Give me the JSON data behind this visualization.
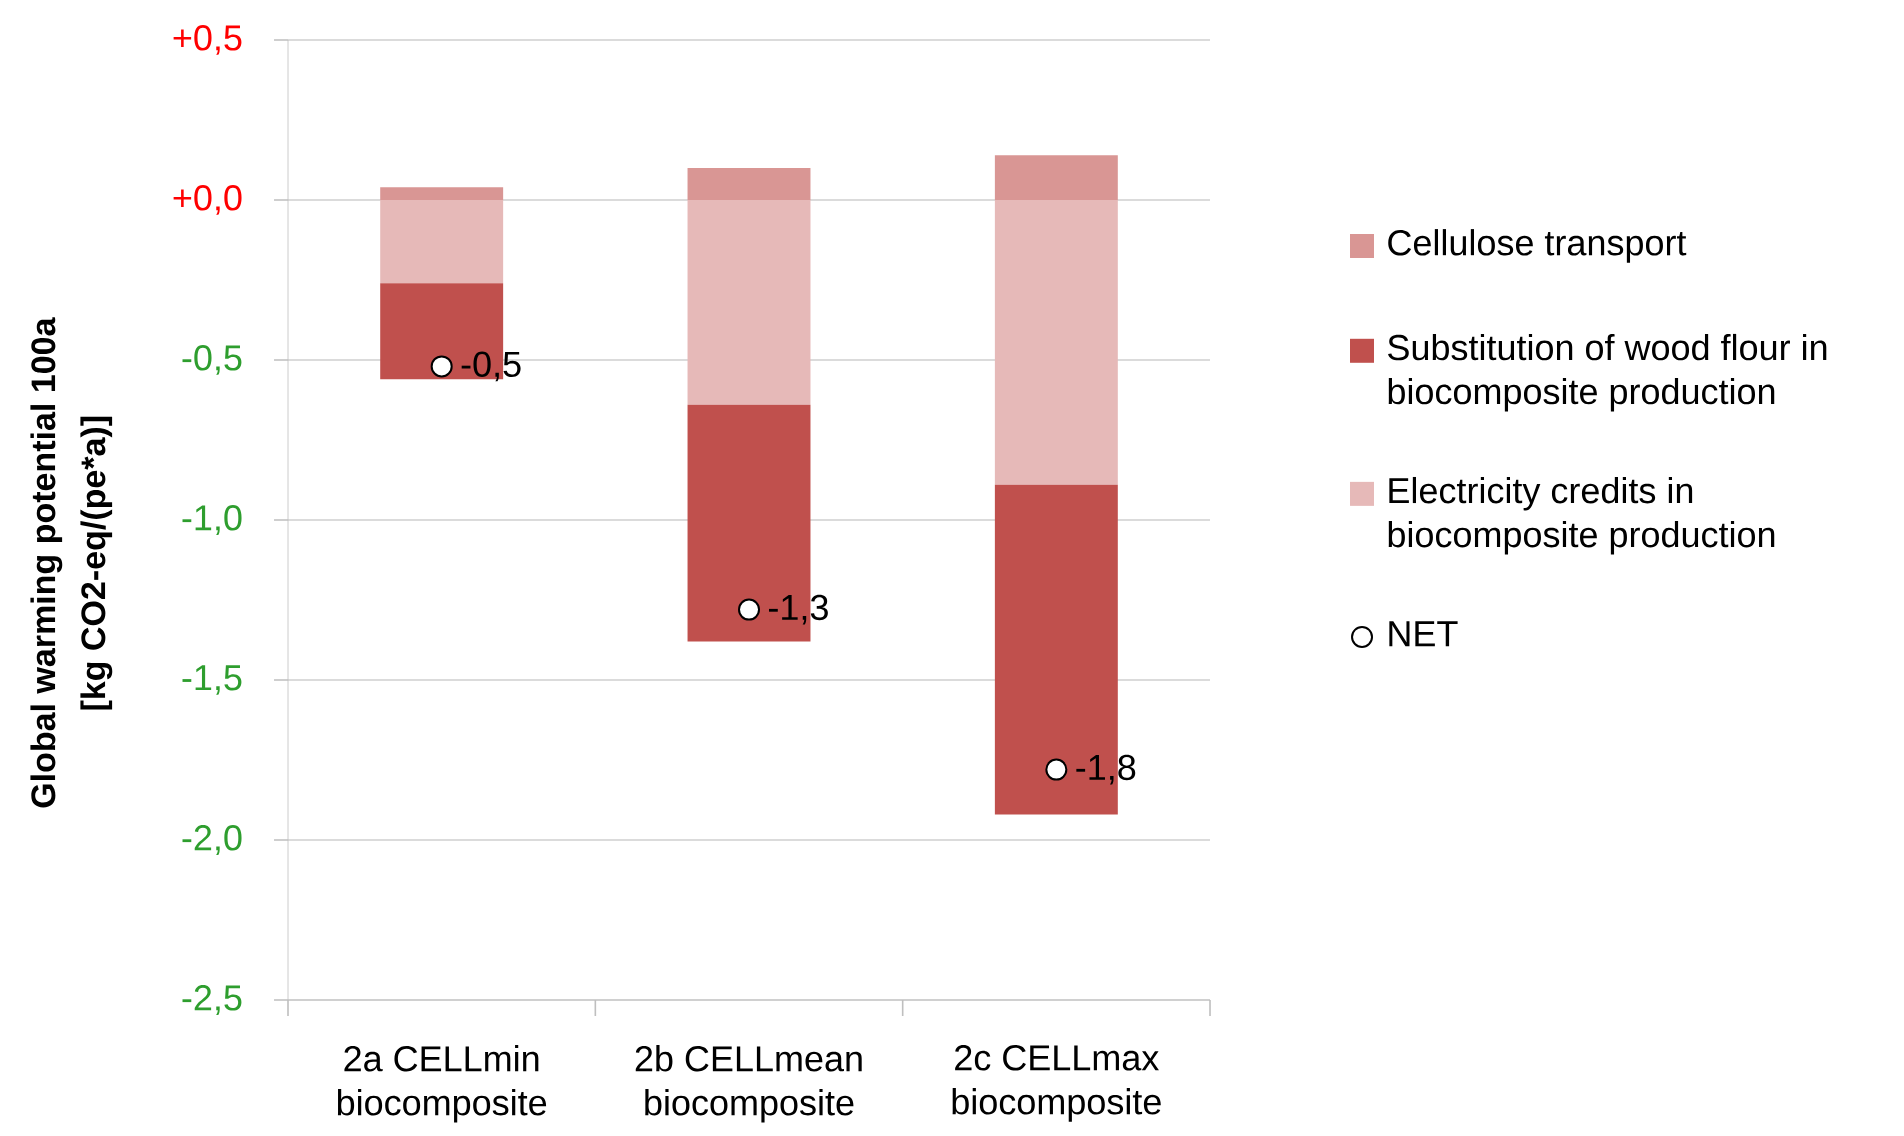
{
  "chart_data": {
    "type": "bar",
    "stacked": true,
    "categories": [
      "2a CELLmin biocomposite",
      "2b CELLmean biocomposite",
      "2c CELLmax biocomposite"
    ],
    "ylabel": "Global warming potential 100a [kg CO2-eq/(pe*a)]",
    "ylim": [
      -2.5,
      0.5
    ],
    "yticks": [
      {
        "value": 0.5,
        "label": "+0,5"
      },
      {
        "value": 0,
        "label": "+0,0"
      },
      {
        "value": -0.5,
        "label": "-0,5"
      },
      {
        "value": -1,
        "label": "-1,0"
      },
      {
        "value": -1.5,
        "label": "-1,5"
      },
      {
        "value": -2,
        "label": "-2,0"
      },
      {
        "value": -2.5,
        "label": "-2,5"
      }
    ],
    "grid": "y",
    "legend": "right",
    "series": [
      {
        "name": "Electricity credits in biocomposite production",
        "color": "#e6b9b8",
        "values": [
          -0.26,
          -0.64,
          -0.89
        ]
      },
      {
        "name": "Substitution of wood flour in biocomposite production",
        "color": "#c0504d",
        "values": [
          -0.3,
          -0.74,
          -1.03
        ]
      },
      {
        "name": "Cellulose transport",
        "color": "#d99694",
        "values": [
          0.04,
          0.1,
          0.14
        ]
      },
      {
        "name": "NET",
        "type": "scatter",
        "color": "#ffffff",
        "marker": "circle",
        "x": [
          "2a CELLmin biocomposite",
          "2b CELLmean biocomposite",
          "2c CELLmax biocomposite"
        ],
        "values": [
          -0.52,
          -1.28,
          -1.78
        ],
        "value_labels": [
          "-0,5",
          "-1,3",
          "-1,8"
        ]
      }
    ]
  }
}
